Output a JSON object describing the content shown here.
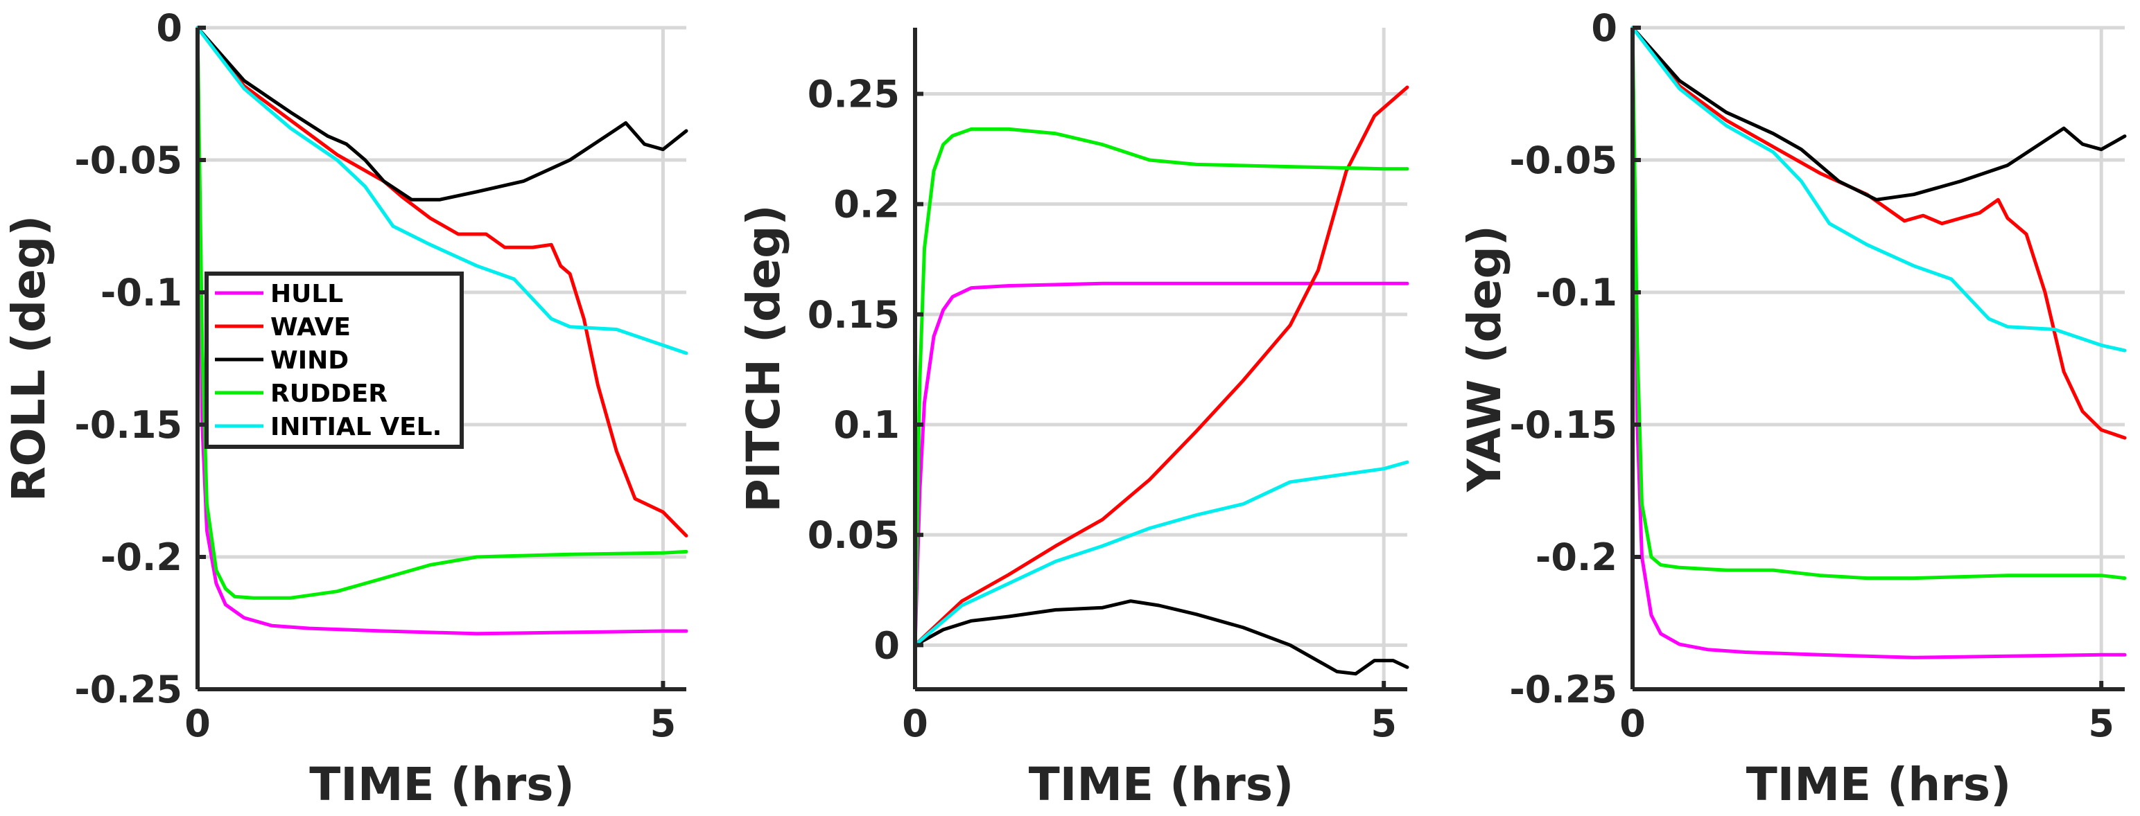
{
  "chart_data": [
    {
      "type": "line",
      "title": "",
      "xlabel": "TIME (hrs)",
      "ylabel": "ROLL (deg)",
      "xlim": [
        0,
        5.25
      ],
      "ylim": [
        -0.25,
        0
      ],
      "xticks": [
        0,
        5
      ],
      "xtick_labels": [
        "0",
        "5"
      ],
      "yticks": [
        0,
        -0.05,
        -0.1,
        -0.15,
        -0.2,
        -0.25
      ],
      "ytick_labels": [
        "0",
        "-0.05",
        "-0.1",
        "-0.15",
        "-0.2",
        "-0.25"
      ],
      "grid": true,
      "legend": "middle-left",
      "series": [
        {
          "name": "HULL",
          "color": "#ff00ff",
          "x": [
            0,
            0.05,
            0.1,
            0.2,
            0.3,
            0.5,
            0.8,
            1.2,
            2,
            3,
            4,
            5,
            5.25
          ],
          "y": [
            0,
            -0.15,
            -0.19,
            -0.21,
            -0.218,
            -0.223,
            -0.226,
            -0.227,
            -0.228,
            -0.229,
            -0.2285,
            -0.228,
            -0.228
          ]
        },
        {
          "name": "WAVE",
          "color": "#ff0000",
          "x": [
            0,
            0.5,
            1,
            1.5,
            2,
            2.2,
            2.5,
            2.8,
            3.1,
            3.3,
            3.6,
            3.8,
            3.9,
            4.0,
            4.15,
            4.3,
            4.5,
            4.7,
            5.0,
            5.25
          ],
          "y": [
            0,
            -0.022,
            -0.035,
            -0.048,
            -0.058,
            -0.064,
            -0.072,
            -0.078,
            -0.078,
            -0.083,
            -0.083,
            -0.082,
            -0.09,
            -0.093,
            -0.11,
            -0.135,
            -0.16,
            -0.178,
            -0.183,
            -0.192
          ]
        },
        {
          "name": "WIND",
          "color": "#000000",
          "x": [
            0,
            0.5,
            1,
            1.4,
            1.6,
            1.8,
            2,
            2.3,
            2.6,
            3,
            3.5,
            4,
            4.3,
            4.6,
            4.8,
            5.0,
            5.25
          ],
          "y": [
            0,
            -0.02,
            -0.032,
            -0.041,
            -0.044,
            -0.05,
            -0.058,
            -0.065,
            -0.065,
            -0.062,
            -0.058,
            -0.05,
            -0.043,
            -0.036,
            -0.044,
            -0.046,
            -0.039
          ]
        },
        {
          "name": "RUDDER",
          "color": "#00ee00",
          "x": [
            0,
            0.05,
            0.1,
            0.2,
            0.3,
            0.4,
            0.6,
            1,
            1.5,
            2,
            2.5,
            3,
            4,
            5,
            5.25
          ],
          "y": [
            0,
            -0.12,
            -0.18,
            -0.205,
            -0.212,
            -0.215,
            -0.2155,
            -0.2155,
            -0.213,
            -0.208,
            -0.203,
            -0.2,
            -0.199,
            -0.1985,
            -0.198
          ]
        },
        {
          "name": "INITIAL VEL.",
          "color": "#00eeee",
          "x": [
            0,
            0.5,
            1,
            1.5,
            1.8,
            2.1,
            2.5,
            3,
            3.4,
            3.8,
            4.0,
            4.5,
            5.0,
            5.25
          ],
          "y": [
            0,
            -0.023,
            -0.038,
            -0.05,
            -0.06,
            -0.075,
            -0.082,
            -0.09,
            -0.095,
            -0.11,
            -0.113,
            -0.114,
            -0.12,
            -0.123
          ]
        }
      ]
    },
    {
      "type": "line",
      "title": "",
      "xlabel": "TIME (hrs)",
      "ylabel": "PITCH (deg)",
      "xlim": [
        0,
        5.25
      ],
      "ylim": [
        -0.02,
        0.28
      ],
      "xticks": [
        0,
        5
      ],
      "xtick_labels": [
        "0",
        "5"
      ],
      "yticks": [
        0,
        0.05,
        0.1,
        0.15,
        0.2,
        0.25
      ],
      "ytick_labels": [
        "0",
        "0.05",
        "0.1",
        "0.15",
        "0.2",
        "0.25"
      ],
      "grid": true,
      "legend": "none",
      "series": [
        {
          "name": "HULL",
          "color": "#ff00ff",
          "x": [
            0,
            0.05,
            0.1,
            0.2,
            0.3,
            0.4,
            0.6,
            1,
            2,
            3,
            4,
            5,
            5.25
          ],
          "y": [
            0,
            0.07,
            0.11,
            0.14,
            0.152,
            0.158,
            0.162,
            0.163,
            0.164,
            0.164,
            0.164,
            0.164,
            0.164
          ]
        },
        {
          "name": "WAVE",
          "color": "#ff0000",
          "x": [
            0,
            0.5,
            1,
            1.5,
            2,
            2.5,
            3,
            3.5,
            4,
            4.3,
            4.6,
            4.9,
            5.25
          ],
          "y": [
            0,
            0.02,
            0.032,
            0.045,
            0.057,
            0.075,
            0.097,
            0.12,
            0.145,
            0.17,
            0.215,
            0.24,
            0.253
          ]
        },
        {
          "name": "WIND",
          "color": "#000000",
          "x": [
            0,
            0.3,
            0.6,
            1,
            1.5,
            2,
            2.3,
            2.6,
            3,
            3.5,
            4,
            4.5,
            4.7,
            4.9,
            5.1,
            5.25
          ],
          "y": [
            0,
            0.007,
            0.011,
            0.013,
            0.016,
            0.017,
            0.02,
            0.018,
            0.014,
            0.008,
            0,
            -0.012,
            -0.013,
            -0.007,
            -0.007,
            -0.01
          ]
        },
        {
          "name": "RUDDER",
          "color": "#00ee00",
          "x": [
            0,
            0.05,
            0.1,
            0.2,
            0.3,
            0.4,
            0.6,
            1,
            1.5,
            2,
            2.5,
            3,
            4,
            5,
            5.25
          ],
          "y": [
            0,
            0.12,
            0.18,
            0.215,
            0.227,
            0.231,
            0.234,
            0.234,
            0.232,
            0.227,
            0.22,
            0.218,
            0.217,
            0.216,
            0.216
          ]
        },
        {
          "name": "INITIAL VEL.",
          "color": "#00eeee",
          "x": [
            0,
            0.5,
            1,
            1.5,
            2,
            2.5,
            3,
            3.5,
            4,
            4.5,
            5,
            5.25
          ],
          "y": [
            0,
            0.018,
            0.028,
            0.038,
            0.045,
            0.053,
            0.059,
            0.064,
            0.074,
            0.077,
            0.08,
            0.083
          ]
        }
      ]
    },
    {
      "type": "line",
      "title": "",
      "xlabel": "TIME (hrs)",
      "ylabel": "YAW (deg)",
      "xlim": [
        0,
        5.25
      ],
      "ylim": [
        -0.25,
        0
      ],
      "xticks": [
        0,
        5
      ],
      "xtick_labels": [
        "0",
        "5"
      ],
      "yticks": [
        0,
        -0.05,
        -0.1,
        -0.15,
        -0.2,
        -0.25
      ],
      "ytick_labels": [
        "0",
        "-0.05",
        "-0.1",
        "-0.15",
        "-0.2",
        "-0.25"
      ],
      "grid": true,
      "legend": "none",
      "series": [
        {
          "name": "HULL",
          "color": "#ff00ff",
          "x": [
            0,
            0.05,
            0.1,
            0.2,
            0.3,
            0.5,
            0.8,
            1.2,
            2,
            3,
            4,
            5,
            5.25
          ],
          "y": [
            0,
            -0.15,
            -0.2,
            -0.222,
            -0.229,
            -0.233,
            -0.235,
            -0.236,
            -0.237,
            -0.238,
            -0.2375,
            -0.237,
            -0.237
          ]
        },
        {
          "name": "WAVE",
          "color": "#ff0000",
          "x": [
            0,
            0.5,
            1,
            1.5,
            2,
            2.5,
            2.9,
            3.1,
            3.3,
            3.5,
            3.7,
            3.9,
            4.0,
            4.2,
            4.4,
            4.6,
            4.8,
            5.0,
            5.25
          ],
          "y": [
            0,
            -0.022,
            -0.035,
            -0.045,
            -0.055,
            -0.063,
            -0.073,
            -0.071,
            -0.074,
            -0.072,
            -0.07,
            -0.065,
            -0.072,
            -0.078,
            -0.1,
            -0.13,
            -0.145,
            -0.152,
            -0.155
          ]
        },
        {
          "name": "WIND",
          "color": "#000000",
          "x": [
            0,
            0.5,
            1,
            1.5,
            1.8,
            2.2,
            2.6,
            3,
            3.5,
            4,
            4.3,
            4.6,
            4.8,
            5.0,
            5.25
          ],
          "y": [
            0,
            -0.02,
            -0.032,
            -0.04,
            -0.046,
            -0.058,
            -0.065,
            -0.063,
            -0.058,
            -0.052,
            -0.045,
            -0.038,
            -0.044,
            -0.046,
            -0.041
          ]
        },
        {
          "name": "RUDDER",
          "color": "#00ee00",
          "x": [
            0,
            0.05,
            0.1,
            0.2,
            0.3,
            0.5,
            1,
            1.5,
            2,
            2.5,
            3,
            4,
            5,
            5.25
          ],
          "y": [
            0,
            -0.12,
            -0.18,
            -0.2,
            -0.203,
            -0.204,
            -0.205,
            -0.205,
            -0.207,
            -0.208,
            -0.208,
            -0.207,
            -0.207,
            -0.208
          ]
        },
        {
          "name": "INITIAL VEL.",
          "color": "#00eeee",
          "x": [
            0,
            0.5,
            1,
            1.5,
            1.8,
            2.1,
            2.5,
            3,
            3.4,
            3.8,
            4.0,
            4.5,
            5.0,
            5.25
          ],
          "y": [
            0,
            -0.023,
            -0.037,
            -0.047,
            -0.058,
            -0.074,
            -0.082,
            -0.09,
            -0.095,
            -0.11,
            -0.113,
            -0.114,
            -0.12,
            -0.122
          ]
        }
      ]
    }
  ]
}
